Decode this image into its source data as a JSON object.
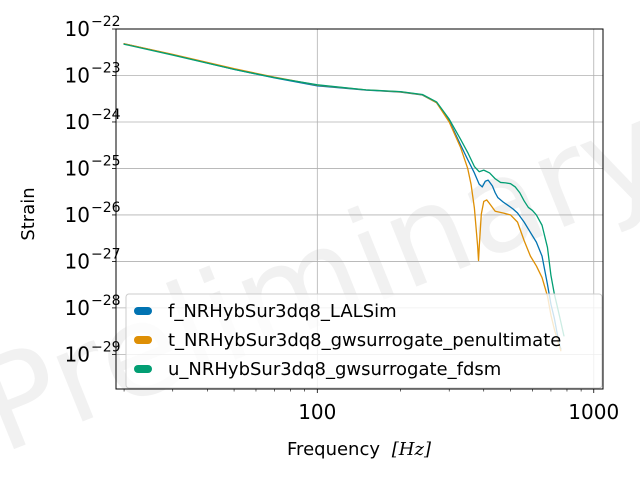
{
  "chart_data": {
    "type": "line",
    "xscale": "log",
    "yscale": "log",
    "xlim": [
      18.7,
      1080
    ],
    "ylim": [
      1.8e-30,
      1e-22
    ],
    "xlabel": "Frequency",
    "xlabel_unit": "[Hz]",
    "ylabel": "Strain",
    "watermark": "Preliminary",
    "grid": true,
    "legend_placement": "lower-left",
    "x_ticks": [
      {
        "value": 100,
        "label": "100"
      },
      {
        "value": 1000,
        "label": "1000"
      }
    ],
    "y_ticks": [
      {
        "value": 1e-22,
        "base": "10",
        "exp": "−22"
      },
      {
        "value": 1e-23,
        "base": "10",
        "exp": "−23"
      },
      {
        "value": 1e-24,
        "base": "10",
        "exp": "−24"
      },
      {
        "value": 1e-25,
        "base": "10",
        "exp": "−25"
      },
      {
        "value": 1e-26,
        "base": "10",
        "exp": "−26"
      },
      {
        "value": 1e-27,
        "base": "10",
        "exp": "−27"
      },
      {
        "value": 1e-28,
        "base": "10",
        "exp": "−28"
      },
      {
        "value": 1e-29,
        "base": "10",
        "exp": "−29"
      }
    ],
    "series": [
      {
        "name": "f_NRHybSur3dq8_LALSim",
        "color": "#0173b2",
        "x": [
          20,
          30,
          50,
          70,
          100,
          150,
          200,
          240,
          270,
          300,
          330,
          350,
          370,
          385,
          395,
          405,
          415,
          430,
          440,
          450,
          470,
          490,
          510,
          530,
          560,
          590,
          620,
          650,
          680,
          700,
          720,
          740,
          760
        ],
        "y": [
          4.8e-23,
          2.8e-23,
          1.35e-23,
          8.9e-24,
          6e-24,
          4.85e-24,
          4.4e-24,
          3.8e-24,
          2.6e-24,
          1.05e-24,
          3.2e-25,
          1.55e-25,
          8e-26,
          4.6e-26,
          4e-26,
          5.3e-26,
          5.6e-26,
          4.2e-26,
          3e-26,
          2.35e-26,
          1.9e-26,
          1.6e-26,
          1.35e-26,
          1.1e-26,
          7e-27,
          4.2e-27,
          2.6e-27,
          1.3e-27,
          3.2e-28,
          1.2e-28,
          6e-29,
          2.5e-29,
          1.3e-29
        ]
      },
      {
        "name": "t_NRHybSur3dq8_gwsurrogate_penultimate",
        "color": "#de8f05",
        "x": [
          20,
          30,
          50,
          70,
          100,
          150,
          200,
          240,
          270,
          300,
          330,
          350,
          360,
          370,
          380,
          383,
          386,
          392,
          400,
          410,
          420,
          440,
          470,
          500,
          530,
          560,
          590,
          620,
          650,
          680,
          700,
          720,
          740,
          760
        ],
        "y": [
          4.8e-23,
          2.85e-23,
          1.4e-23,
          9.2e-24,
          6.2e-24,
          4.9e-24,
          4.45e-24,
          3.85e-24,
          2.6e-24,
          1e-24,
          2.8e-25,
          1e-25,
          4.5e-26,
          1.4e-26,
          2.2e-27,
          1.05e-27,
          2.5e-27,
          1.05e-26,
          1.95e-26,
          2.1e-26,
          1.75e-26,
          1.2e-26,
          1.1e-26,
          1e-26,
          7e-27,
          2.8e-27,
          1.3e-27,
          8e-28,
          4.5e-28,
          1.8e-28,
          7e-29,
          3.5e-29,
          2e-29,
          1.2e-29
        ]
      },
      {
        "name": "u_NRHybSur3dq8_gwsurrogate_fdsm",
        "color": "#029e73",
        "x": [
          20,
          30,
          50,
          70,
          100,
          150,
          200,
          240,
          270,
          300,
          330,
          350,
          370,
          385,
          400,
          420,
          440,
          460,
          480,
          500,
          520,
          540,
          560,
          580,
          600,
          620,
          650,
          680,
          700,
          720,
          740,
          760,
          780
        ],
        "y": [
          4.7e-23,
          2.75e-23,
          1.35e-23,
          9e-24,
          6.3e-24,
          4.9e-24,
          4.5e-24,
          3.9e-24,
          2.7e-24,
          1.15e-24,
          4.2e-25,
          2.2e-25,
          1.1e-25,
          8.5e-26,
          9.2e-26,
          8e-26,
          6e-26,
          5e-26,
          4.9e-26,
          4.7e-26,
          4e-26,
          3e-26,
          2e-26,
          1.45e-26,
          1.25e-26,
          1e-26,
          6e-27,
          2e-27,
          5e-28,
          2e-28,
          1e-28,
          5e-29,
          2.5e-29
        ]
      }
    ]
  }
}
